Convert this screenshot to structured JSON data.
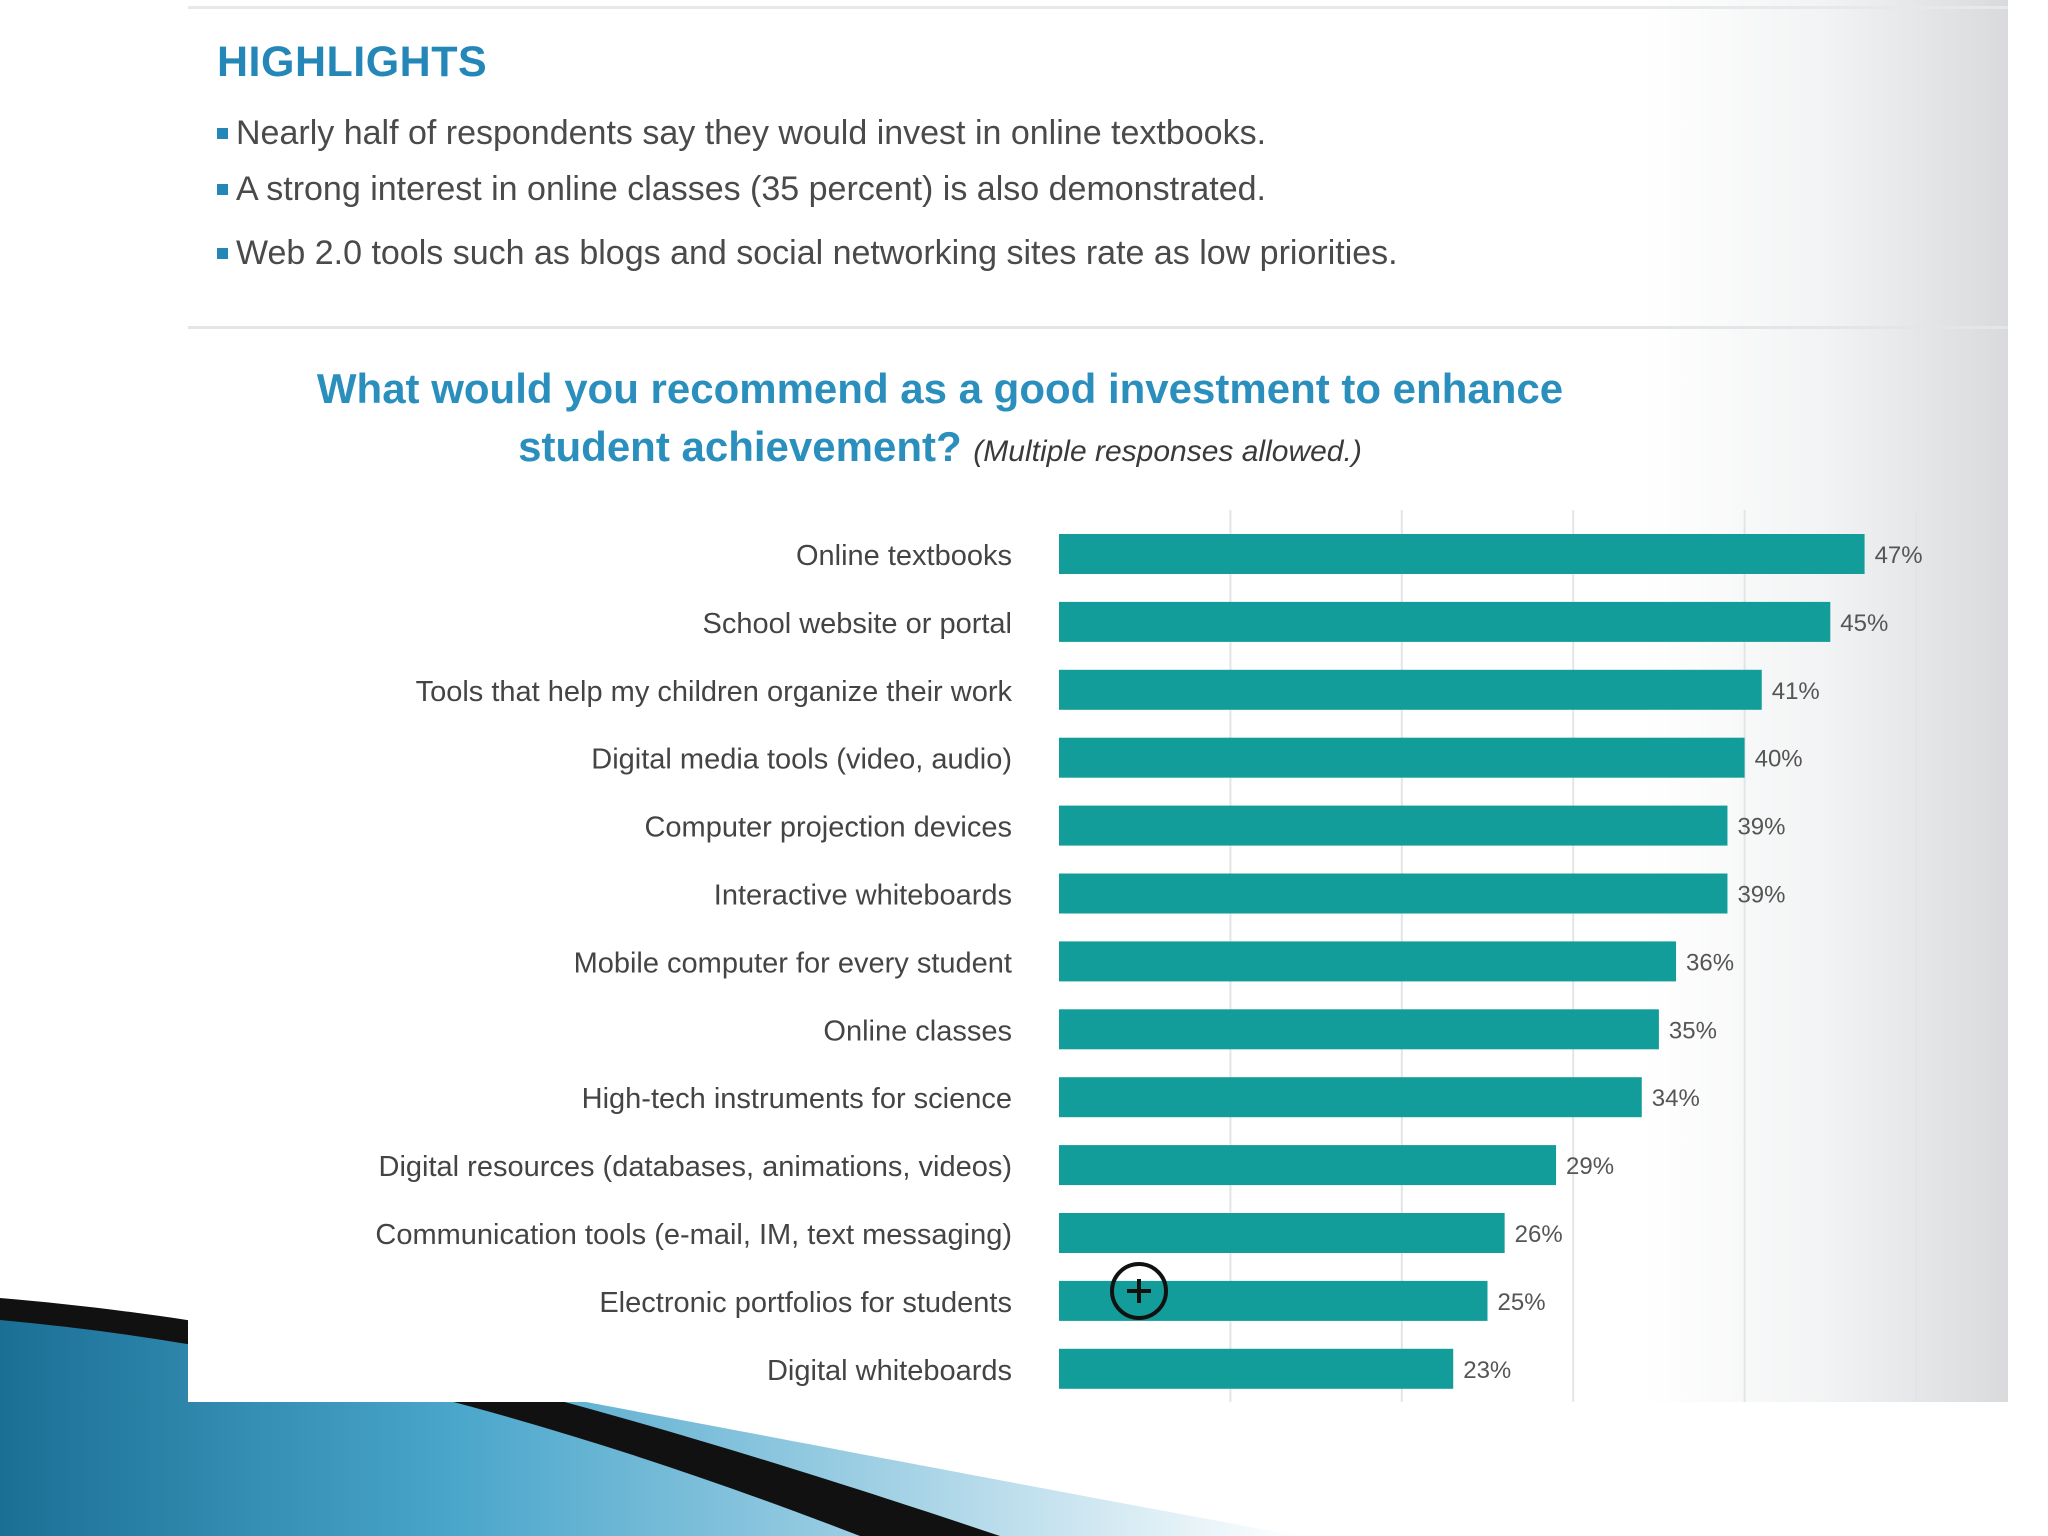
{
  "highlights": {
    "heading": "HIGHLIGHTS",
    "items": [
      "Nearly half of respondents say they would invest in online textbooks.",
      "A strong interest in online classes (35 percent) is also demonstrated.",
      "Web 2.0 tools such as blogs and social networking sites rate as low priorities."
    ]
  },
  "chart": {
    "title_line1": "What would you recommend as a good investment to enhance",
    "title_line2": "student achievement?",
    "title_note": "(Multiple responses allowed.)"
  },
  "chart_data": {
    "type": "bar",
    "orientation": "horizontal",
    "title": "What would you recommend as a good investment to enhance student achievement?",
    "subtitle": "(Multiple responses allowed.)",
    "categories": [
      "Online textbooks",
      "School website or portal",
      "Tools that help my children organize their work",
      "Digital media tools (video, audio)",
      "Computer projection devices",
      "Interactive whiteboards",
      "Mobile computer for every student",
      "Online classes",
      "High-tech instruments for science",
      "Digital resources (databases, animations, videos)",
      "Communication tools (e-mail, IM, text messaging)",
      "Electronic portfolios for students",
      "Digital whiteboards"
    ],
    "values": [
      47,
      45,
      41,
      40,
      39,
      39,
      36,
      35,
      34,
      29,
      26,
      25,
      23
    ],
    "value_labels": [
      "47%",
      "45%",
      "41%",
      "40%",
      "39%",
      "39%",
      "36%",
      "35%",
      "34%",
      "29%",
      "26%",
      "25%",
      "23%"
    ],
    "xlim": [
      0,
      50
    ],
    "grid": true,
    "legend": "none",
    "colors": {
      "bar": "#139d9a",
      "title": "#2a8fbd",
      "heading": "#2487b8"
    }
  },
  "overlay": {
    "icon": "plus-circle-icon"
  }
}
